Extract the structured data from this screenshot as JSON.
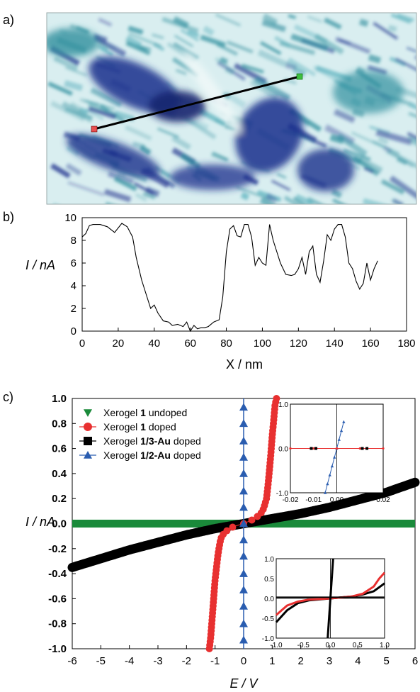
{
  "panels": {
    "a": {
      "label": "a)"
    },
    "b": {
      "label": "b)"
    },
    "c": {
      "label": "c)"
    }
  },
  "colors": {
    "image_light": "#d9eef0",
    "image_teal": "#2f8f9e",
    "image_dark": "#1b2f8c",
    "line": "#000000",
    "green": "#1a8a3a",
    "red": "#e83030",
    "black": "#000000",
    "blue": "#2a5db0"
  },
  "chart_data": [
    {
      "panel": "b",
      "type": "line",
      "xlabel": "X / nm",
      "ylabel": "I / nA",
      "xlim": [
        0,
        180
      ],
      "ylim": [
        0,
        10
      ],
      "xticks": [
        "0",
        "20",
        "40",
        "60",
        "80",
        "100",
        "120",
        "140",
        "160",
        "180"
      ],
      "yticks": [
        "0",
        "2",
        "4",
        "6",
        "8",
        "10"
      ],
      "series": [
        {
          "x": [
            0,
            2,
            4,
            6,
            8,
            10,
            14,
            18,
            22,
            25,
            28,
            30,
            33,
            36,
            38,
            40,
            42,
            45,
            48,
            50,
            53,
            56,
            58,
            60,
            62,
            64,
            66,
            68,
            70,
            73,
            76,
            78,
            80,
            82,
            84,
            86,
            88,
            90,
            92,
            94,
            96,
            98,
            100,
            102,
            104,
            106,
            108,
            110,
            113,
            116,
            118,
            120,
            122,
            124,
            126,
            128,
            130,
            132,
            134,
            136,
            138,
            140,
            142,
            144,
            146,
            148,
            150,
            152,
            154,
            156,
            158,
            160,
            162,
            164
          ],
          "y": [
            8.3,
            8.6,
            9.3,
            9.4,
            9.4,
            9.4,
            9.2,
            8.7,
            9.5,
            9.2,
            8.3,
            6.5,
            4.5,
            3.0,
            2.0,
            2.3,
            1.6,
            0.9,
            0.8,
            0.5,
            0.6,
            0.4,
            0.8,
            0.0,
            0.5,
            0.2,
            0.3,
            0.3,
            0.4,
            0.8,
            1.0,
            3.0,
            7.0,
            9.0,
            9.3,
            8.4,
            8.3,
            9.4,
            9.4,
            8.3,
            5.8,
            6.5,
            6.0,
            5.8,
            9.4,
            8.0,
            7.0,
            6.0,
            5.0,
            4.9,
            5.0,
            5.5,
            6.5,
            5.0,
            7.0,
            7.5,
            5.0,
            4.3,
            6.2,
            8.5,
            8.0,
            9.0,
            9.4,
            9.4,
            8.3,
            6.0,
            5.5,
            4.4,
            3.7,
            4.2,
            6.0,
            4.5,
            5.5,
            6.2
          ]
        }
      ]
    },
    {
      "panel": "c",
      "type": "scatter",
      "xlabel": "E / V",
      "ylabel": "I / nA",
      "xlim": [
        -6,
        6
      ],
      "ylim": [
        -1.0,
        1.0
      ],
      "xticks": [
        "-6",
        "-5",
        "-4",
        "-3",
        "-2",
        "-1",
        "0",
        "1",
        "2",
        "3",
        "4",
        "5",
        "6"
      ],
      "yticks": [
        "-1.0",
        "-0.8",
        "-0.6",
        "-0.4",
        "-0.2",
        "0.0",
        "0.2",
        "0.4",
        "0.6",
        "0.8",
        "1.0"
      ],
      "legend": {
        "position": "top-left",
        "entries": [
          {
            "pre": "Xerogel ",
            "bold": "1",
            "post": " undoped",
            "marker": "triangle-down",
            "color": "#1a8a3a"
          },
          {
            "pre": "Xerogel ",
            "bold": "1",
            "post": " doped",
            "marker": "circle",
            "color": "#e83030"
          },
          {
            "pre": "Xerogel ",
            "bold": "1/3-Au",
            "post": " doped",
            "marker": "square",
            "color": "#000000"
          },
          {
            "pre": "Xerogel ",
            "bold": "1/2-Au",
            "post": " doped",
            "marker": "triangle-up",
            "color": "#2a5db0"
          }
        ]
      },
      "series": [
        {
          "name": "Xerogel 1 undoped",
          "relation": "I = 0.0 nA",
          "x_range": [
            -6,
            6
          ],
          "y_range": [
            -0.02,
            0.02
          ]
        },
        {
          "name": "Xerogel 1 doped",
          "x": [
            -1.2,
            -1.15,
            -1.1,
            -1.05,
            -1.0,
            -0.95,
            -0.9,
            -0.85,
            -0.8,
            -0.7,
            -0.6,
            -0.5,
            -0.3,
            0.0,
            0.3,
            0.5,
            0.6,
            0.7,
            0.8,
            0.85,
            0.9,
            0.95,
            1.0,
            1.05,
            1.1,
            1.15
          ],
          "y": [
            -1.0,
            -0.9,
            -0.75,
            -0.6,
            -0.45,
            -0.35,
            -0.25,
            -0.18,
            -0.12,
            -0.08,
            -0.06,
            -0.04,
            -0.02,
            0.0,
            0.03,
            0.06,
            0.08,
            0.12,
            0.2,
            0.3,
            0.42,
            0.55,
            0.7,
            0.82,
            0.95,
            1.0
          ]
        },
        {
          "name": "Xerogel 1/3-Au doped",
          "x": [
            -6,
            -5,
            -4,
            -3,
            -2,
            -1,
            0,
            1,
            2,
            3,
            4,
            5,
            6
          ],
          "y": [
            -0.35,
            -0.28,
            -0.21,
            -0.15,
            -0.09,
            -0.04,
            0.0,
            0.04,
            0.08,
            0.13,
            0.19,
            0.25,
            0.33
          ]
        },
        {
          "name": "Xerogel 1/2-Au doped",
          "x": [
            0,
            0,
            0,
            0,
            0,
            0,
            0,
            0,
            0,
            0,
            0,
            0,
            0,
            0,
            0
          ],
          "y": [
            -0.93,
            -0.8,
            -0.66,
            -0.53,
            -0.4,
            -0.26,
            -0.13,
            0.0,
            0.13,
            0.26,
            0.4,
            0.53,
            0.66,
            0.8,
            0.93
          ]
        }
      ],
      "insets": [
        {
          "position": "top-right",
          "xlim": [
            -0.02,
            0.02
          ],
          "ylim": [
            -1.0,
            1.0
          ],
          "xticks": [
            "-0.02",
            "-0.01",
            "0.00",
            "0.01",
            "0.02"
          ],
          "yticks": [
            "-1.0",
            "0.0",
            "1.0"
          ],
          "series": [
            {
              "name": "Xerogel 1/2-Au doped",
              "x": [
                -0.005,
                -0.004,
                -0.003,
                -0.002,
                -0.001,
                0.0,
                0.001,
                0.002,
                0.003
              ],
              "y": [
                -1.0,
                -0.8,
                -0.6,
                -0.4,
                -0.2,
                0.0,
                0.2,
                0.4,
                0.6
              ]
            },
            {
              "name": "Xerogel 1 doped",
              "x": [
                -0.02,
                -0.01,
                0.0,
                0.01,
                0.02
              ],
              "y": [
                0,
                0,
                0,
                0,
                0
              ]
            },
            {
              "name": "Xerogel 1/3-Au doped",
              "x": [
                -0.011,
                -0.009,
                0.011,
                0.013
              ],
              "y": [
                0,
                0,
                0,
                0
              ]
            }
          ]
        },
        {
          "position": "bottom-right",
          "xlim": [
            -1.0,
            1.0
          ],
          "ylim": [
            -1.0,
            1.0
          ],
          "xticks": [
            "-1.0",
            "-0.5",
            "0.0",
            "0.5",
            "1.0"
          ],
          "yticks": [
            "-1.0",
            "-0.5",
            "0.0",
            "0.5",
            "1.0"
          ],
          "series": [
            {
              "name": "Xerogel 1 doped",
              "x": [
                -1.0,
                -0.9,
                -0.8,
                -0.6,
                -0.4,
                0.0,
                0.4,
                0.6,
                0.8,
                0.9,
                1.0
              ],
              "y": [
                -0.42,
                -0.3,
                -0.18,
                -0.08,
                -0.03,
                0.0,
                0.05,
                0.12,
                0.3,
                0.5,
                0.65
              ]
            },
            {
              "name": "Xerogel 1/3-Au doped",
              "x": [
                -1.0,
                -0.9,
                -0.8,
                -0.6,
                -0.4,
                0.0,
                0.4,
                0.6,
                0.8,
                0.9,
                1.0
              ],
              "y": [
                -0.6,
                -0.45,
                -0.3,
                -0.12,
                -0.05,
                0.0,
                0.05,
                0.1,
                0.18,
                0.28,
                0.38
              ]
            },
            {
              "name": "Xerogel 1/2-Au doped",
              "x": [
                -0.05,
                0.05
              ],
              "y": [
                -1.0,
                1.0
              ]
            },
            {
              "name": "Xerogel 1 undoped",
              "x": [
                -1.0,
                1.0
              ],
              "y": [
                0.03,
                0.03
              ]
            }
          ]
        }
      ]
    }
  ]
}
